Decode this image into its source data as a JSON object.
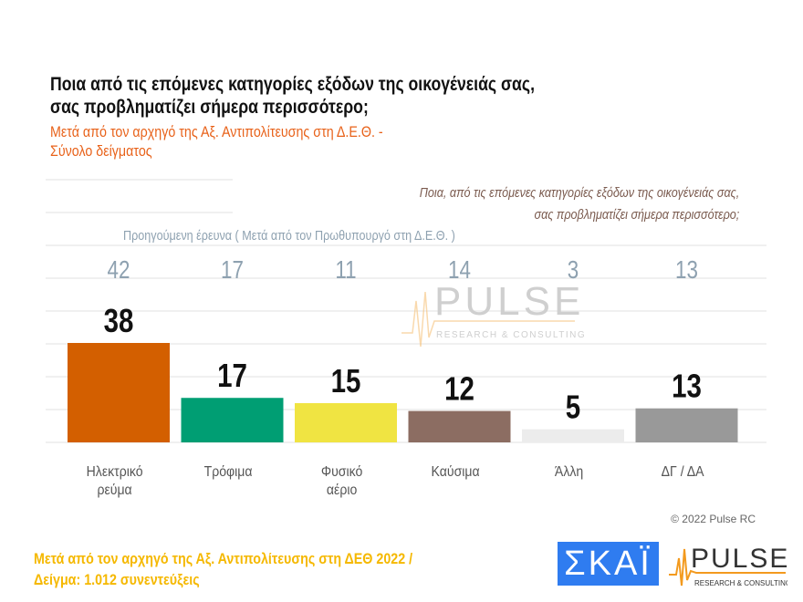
{
  "title_lines": [
    "Ποια από τις επόμενες κατηγορίες εξόδων της οικογένειάς σας,",
    "σας προβληματίζει σήμερα περισσότερο;"
  ],
  "subtitle_lines": [
    "Μετά από τον αρχηγό της Αξ. Αντιπολίτευσης στη Δ.Ε.Θ. -",
    "Σύνολο δείγματος"
  ],
  "question_lines": [
    "Ποια, από τις επόμενες κατηγορίες εξόδων της οικογένειάς σας,",
    "σας προβληματίζει σήμερα περισσότερο;"
  ],
  "previous_label": "Προηγούμενη έρευνα  (  Μετά από τον Πρωθυπουργό στη Δ.Ε.Θ. )",
  "chart_data": {
    "type": "bar",
    "categories": [
      "Ηλεκτρικό ρεύμα",
      "Τρόφιμα",
      "Φυσικό αέριο",
      "Καύσιμα",
      "Άλλη",
      "ΔΓ / ΔΑ"
    ],
    "category_lines": [
      [
        "Ηλεκτρικό",
        "ρεύμα"
      ],
      [
        "Τρόφιμα"
      ],
      [
        "Φυσικό",
        "αέριο"
      ],
      [
        "Καύσιμα"
      ],
      [
        "Άλλη"
      ],
      [
        "ΔΓ / ΔΑ"
      ]
    ],
    "values": [
      38,
      17,
      15,
      12,
      5,
      13
    ],
    "previous_values": [
      42,
      17,
      11,
      14,
      3,
      13
    ],
    "colors": [
      "#d35f00",
      "#009e73",
      "#f0e442",
      "#8c6d62",
      "#ececec",
      "#999999"
    ],
    "ylim": [
      0,
      40
    ],
    "grid": true
  },
  "watermark": {
    "brand": "PULSE",
    "tagline": "RESEARCH & CONSULTING"
  },
  "copyright": "© 2022 Pulse RC",
  "footer_lines": [
    "Μετά από τον αρχηγό της Αξ. Αντιπολίτευσης στη ΔΕΘ  2022  /",
    "Δείγμα:  1.012 συνεντεύξεις"
  ],
  "logos": {
    "skai": "ΣΚΑΪ",
    "pulse": "PULSE",
    "pulse_tagline": "RESEARCH & CONSULTING"
  }
}
